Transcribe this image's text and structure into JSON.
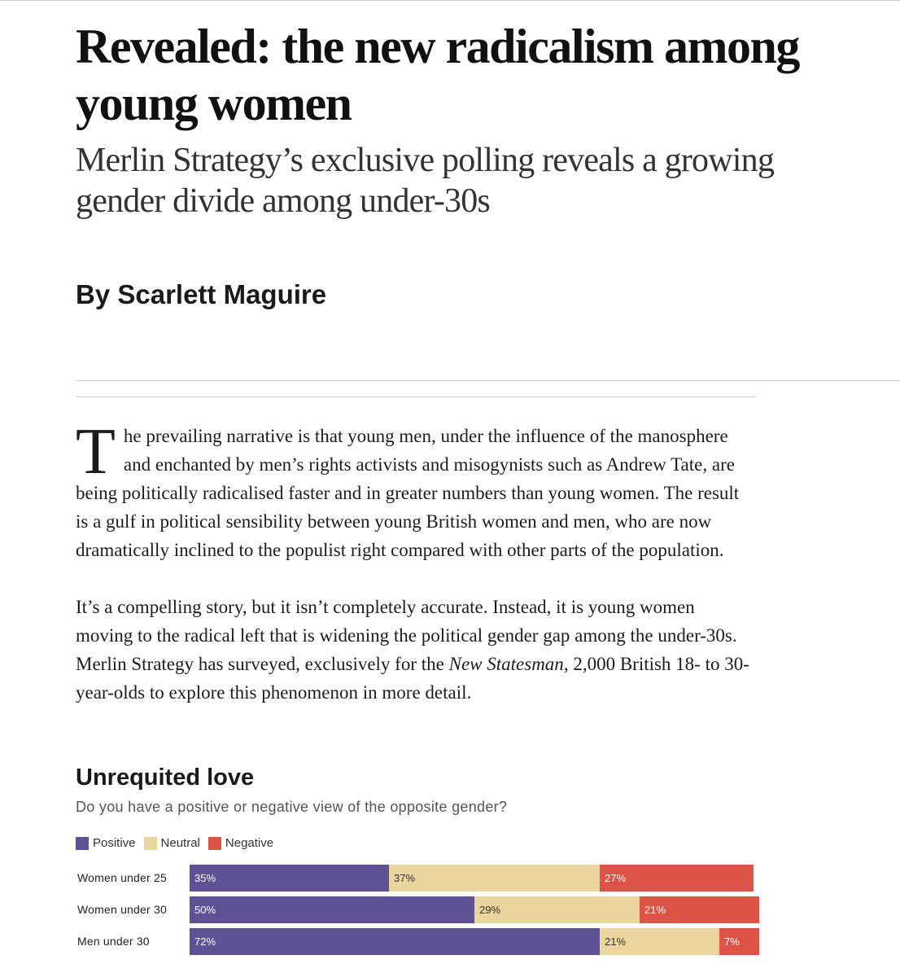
{
  "article": {
    "headline": "Revealed: the new radicalism among young women",
    "standfirst": "Merlin Strategy’s exclusive polling reveals a growing gender divide among under-30s",
    "byline": "By Scarlett Maguire",
    "dropcap": "T",
    "p1_rest": "he prevailing narrative is that young men, under the influence of the manosphere and enchanted by men’s rights activists and misogynists such as Andrew Tate, are being politically radicalised faster and in greater numbers than young women. The result is a gulf in political sensibility between young British women and men, who are now dramatically inclined to the populist right compared with other parts of the population.",
    "p2_before": "It’s a compelling story, but it isn’t completely accurate. Instead, it is young women moving to the radical left that is widening the political gender gap among the under-30s. Merlin Strategy has surveyed, exclusively for the ",
    "p2_italic": "New Statesman",
    "p2_after": ", 2,000 British 18- to 30-year-olds to explore this phenomenon in more detail."
  },
  "colors": {
    "positive": "#5e5294",
    "neutral": "#ead59f",
    "negative": "#dd5347"
  },
  "chart_data": {
    "type": "bar",
    "stacked": true,
    "orientation": "horizontal",
    "title": "Unrequited love",
    "subtitle": "Do you have a positive or negative view of the opposite gender?",
    "legend_position": "top-left",
    "categories": [
      "Women under 25",
      "Women under 30",
      "Men under 30"
    ],
    "series": [
      {
        "name": "Positive",
        "values": [
          35,
          50,
          72
        ],
        "labels": [
          "35%",
          "50%",
          "72%"
        ]
      },
      {
        "name": "Neutral",
        "values": [
          37,
          29,
          21
        ],
        "labels": [
          "37%",
          "29%",
          "21%"
        ]
      },
      {
        "name": "Negative",
        "values": [
          27,
          21,
          7
        ],
        "labels": [
          "27%",
          "21%",
          "7%"
        ]
      }
    ],
    "xlim": [
      0,
      100
    ]
  }
}
